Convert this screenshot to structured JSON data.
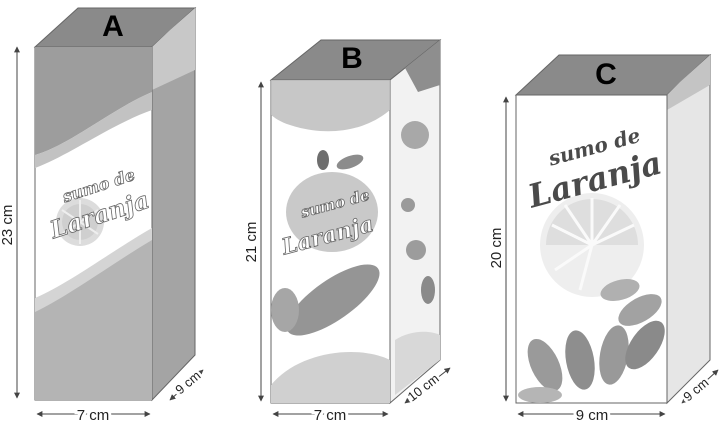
{
  "cartons": [
    {
      "id": "A",
      "label": "A",
      "height": "23 cm",
      "width": "7 cm",
      "depth": "9 cm",
      "logo_line1": "sumo de",
      "logo_line2": "Laranja"
    },
    {
      "id": "B",
      "label": "B",
      "height": "21 cm",
      "width": "7 cm",
      "depth": "10 cm",
      "logo_line1": "sumo de",
      "logo_line2": "Laranja"
    },
    {
      "id": "C",
      "label": "C",
      "height": "20 cm",
      "width": "9 cm",
      "depth": "9 cm",
      "logo_line1": "sumo de",
      "logo_line2": "Laranja"
    }
  ],
  "colors": {
    "top_face": "#8a8a8a",
    "side_face": "#a0a0a0",
    "front_band": "#b9b9b9",
    "outline": "#555555"
  }
}
